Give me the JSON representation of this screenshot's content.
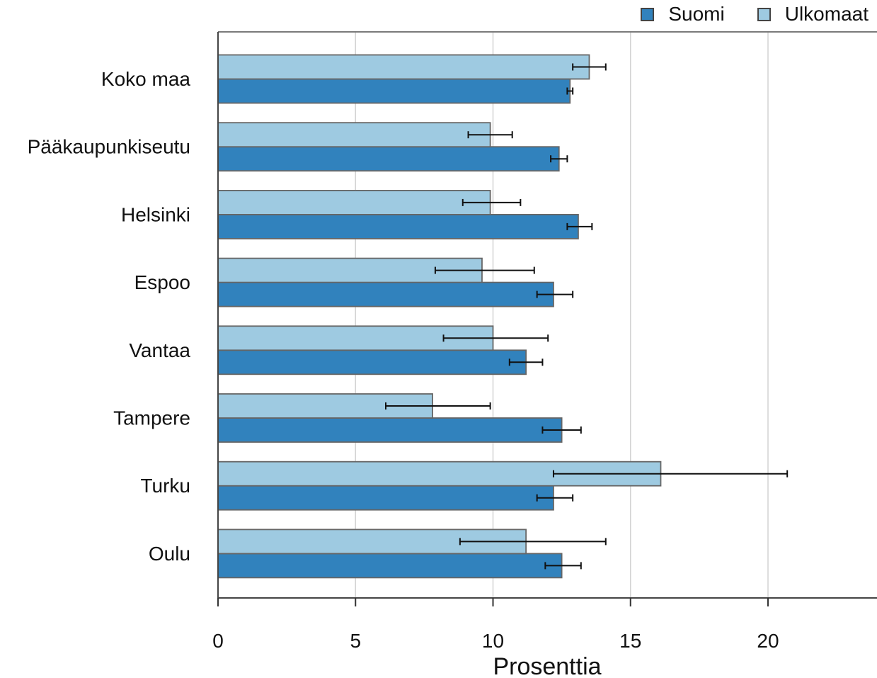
{
  "chart_data": {
    "type": "bar",
    "orientation": "horizontal",
    "xlabel": "Prosenttia",
    "ylabel": "",
    "xlim": [
      0,
      24
    ],
    "xticks": [
      "0",
      "5",
      "10",
      "15",
      "20"
    ],
    "grid": true,
    "legend_position": "top-right",
    "categories": [
      "Koko maa",
      "Pääkaupunkiseutu",
      "Helsinki",
      "Espoo",
      "Vantaa",
      "Tampere",
      "Turku",
      "Oulu"
    ],
    "series": [
      {
        "name": "Suomi",
        "color": "#3182bd",
        "values": [
          12.8,
          12.4,
          13.1,
          12.2,
          11.2,
          12.5,
          12.2,
          12.5
        ],
        "error_low": [
          12.7,
          12.1,
          12.7,
          11.6,
          10.6,
          11.8,
          11.6,
          11.9
        ],
        "error_high": [
          12.9,
          12.7,
          13.6,
          12.9,
          11.8,
          13.2,
          12.9,
          13.2
        ]
      },
      {
        "name": "Ulkomaat",
        "color": "#9ecae1",
        "values": [
          13.5,
          9.9,
          9.9,
          9.6,
          10.0,
          7.8,
          16.1,
          11.2
        ],
        "error_low": [
          12.9,
          9.1,
          8.9,
          7.9,
          8.2,
          6.1,
          12.2,
          8.8
        ],
        "error_high": [
          14.1,
          10.7,
          11.0,
          11.5,
          12.0,
          9.9,
          20.7,
          14.1
        ]
      }
    ]
  }
}
